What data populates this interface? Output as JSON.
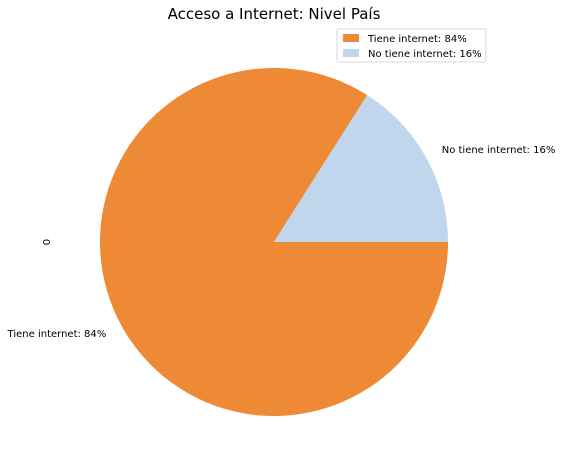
{
  "chart_data": {
    "type": "pie",
    "title": "Acceso a Internet: Nivel País",
    "ylabel": "0",
    "categories": [
      "Tiene internet",
      "No tiene internet"
    ],
    "values": [
      84,
      16
    ],
    "slice_labels": [
      "Tiene internet: 84%",
      "No tiene internet: 16%"
    ],
    "colors": [
      "#ee8a35",
      "#bfd6ec"
    ],
    "legend": {
      "placement": "top-right",
      "entries": [
        "Tiene internet: 84%",
        "No tiene internet: 16%"
      ]
    },
    "start_angle_deg": 0,
    "direction": "clockwise"
  }
}
